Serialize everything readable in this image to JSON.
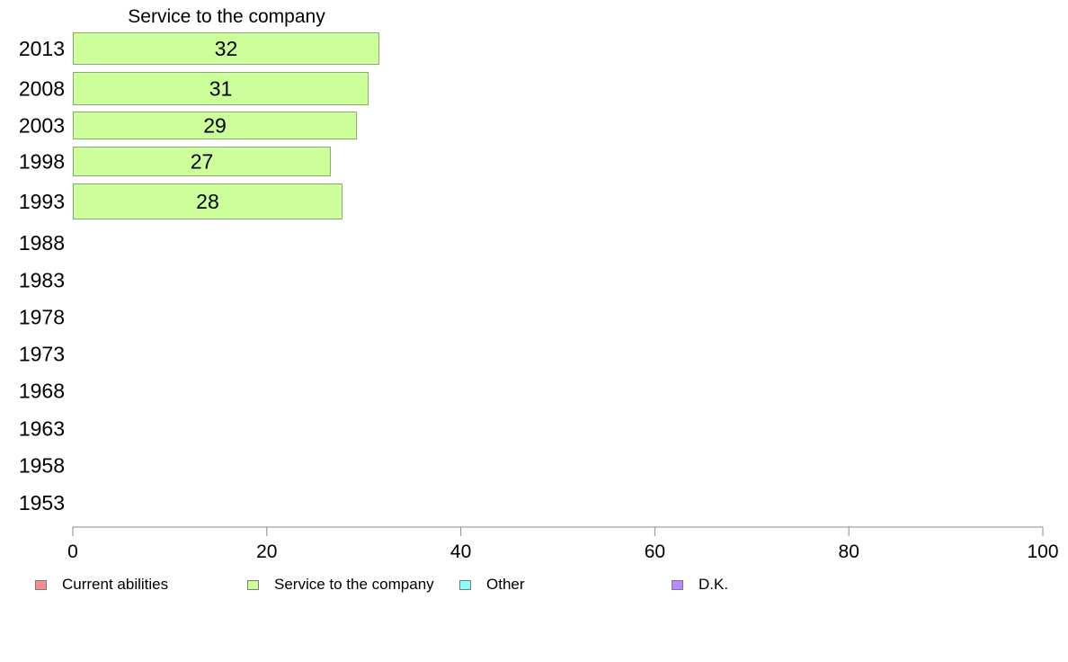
{
  "chart_data": {
    "type": "bar",
    "orientation": "horizontal",
    "title": "Service to the company",
    "categories": [
      "2013",
      "2008",
      "2003",
      "1998",
      "1993",
      "1988",
      "1983",
      "1978",
      "1973",
      "1968",
      "1963",
      "1958",
      "1953"
    ],
    "series": [
      {
        "name": "Service to the company",
        "color": "#ccff99",
        "values": [
          31.6,
          30.5,
          29.3,
          26.6,
          27.8,
          null,
          null,
          null,
          null,
          null,
          null,
          null,
          null
        ],
        "labels": [
          "32",
          "31",
          "29",
          "27",
          "28",
          "",
          "",
          "",
          "",
          "",
          "",
          "",
          ""
        ]
      }
    ],
    "xlim": [
      0,
      100
    ],
    "xticks": [
      0,
      20,
      40,
      60,
      80,
      100
    ],
    "grid": false,
    "legend_position": "bottom",
    "legend": [
      {
        "label": "Current abilities",
        "color": "#ff8888"
      },
      {
        "label": "Service to the company",
        "color": "#ccff99"
      },
      {
        "label": "Other",
        "color": "#88ffff"
      },
      {
        "label": "D.K.",
        "color": "#bb88ff"
      }
    ]
  }
}
